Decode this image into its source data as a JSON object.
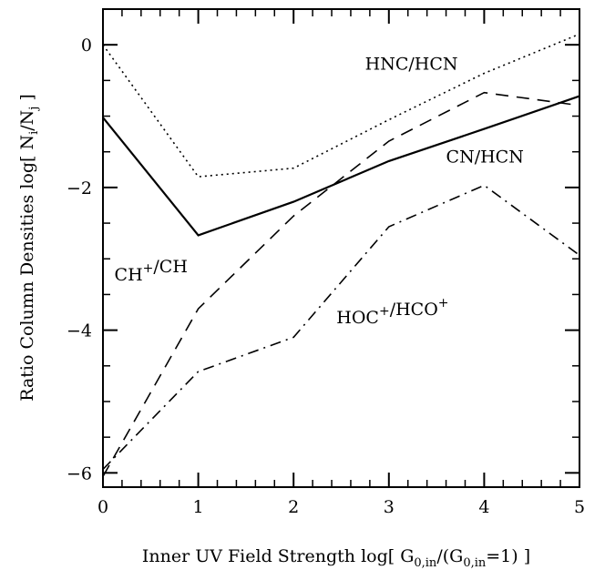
{
  "chart_data": {
    "type": "line",
    "xlabel": {
      "main": "Inner UV Field Strength log[ G",
      "sub1": "0,in",
      "mid": "/(G",
      "sub2": "0,in",
      "tail": "=1) ]"
    },
    "ylabel": {
      "main": "Ratio Column Densities log[ N",
      "sub1": "i",
      "mid": "/N",
      "sub2": "j",
      "tail": " ]"
    },
    "xlim": [
      0,
      5
    ],
    "ylim": [
      -6.2,
      0.5
    ],
    "xticks": [
      0,
      1,
      2,
      3,
      4,
      5
    ],
    "yticks": [
      0,
      -2,
      -4,
      -6
    ],
    "grid": false,
    "series": [
      {
        "name": "HNC/HCN",
        "label_parts": [
          "HNC/HCN"
        ],
        "style": "dotted",
        "x": [
          0,
          1,
          2,
          3,
          4,
          5
        ],
        "y": [
          0.0,
          -1.85,
          -1.73,
          -1.05,
          -0.4,
          0.15
        ],
        "label_at": [
          2.75,
          -0.35
        ]
      },
      {
        "name": "CN/HCN",
        "label_parts": [
          "CN/HCN"
        ],
        "style": "solid",
        "x": [
          0,
          1,
          2,
          3,
          4,
          5
        ],
        "y": [
          -1.02,
          -2.67,
          -2.2,
          -1.63,
          -1.18,
          -0.72
        ],
        "label_at": [
          3.6,
          -1.65
        ]
      },
      {
        "name": "CH+/CH",
        "label_parts": [
          "CH",
          "+",
          "/CH"
        ],
        "style": "dashed",
        "x": [
          0,
          1,
          2,
          3,
          4,
          5
        ],
        "y": [
          -6.05,
          -3.7,
          -2.4,
          -1.35,
          -0.67,
          -0.85
        ],
        "label_at": [
          0.12,
          -3.3
        ]
      },
      {
        "name": "HOC+/HCO+",
        "label_parts": [
          "HOC",
          "+",
          "/HCO",
          "+"
        ],
        "style": "dashdot",
        "x": [
          0,
          1,
          2,
          3,
          4,
          5
        ],
        "y": [
          -5.95,
          -4.58,
          -4.1,
          -2.55,
          -1.97,
          -2.95
        ],
        "label_at": [
          2.45,
          -3.9
        ]
      }
    ]
  }
}
